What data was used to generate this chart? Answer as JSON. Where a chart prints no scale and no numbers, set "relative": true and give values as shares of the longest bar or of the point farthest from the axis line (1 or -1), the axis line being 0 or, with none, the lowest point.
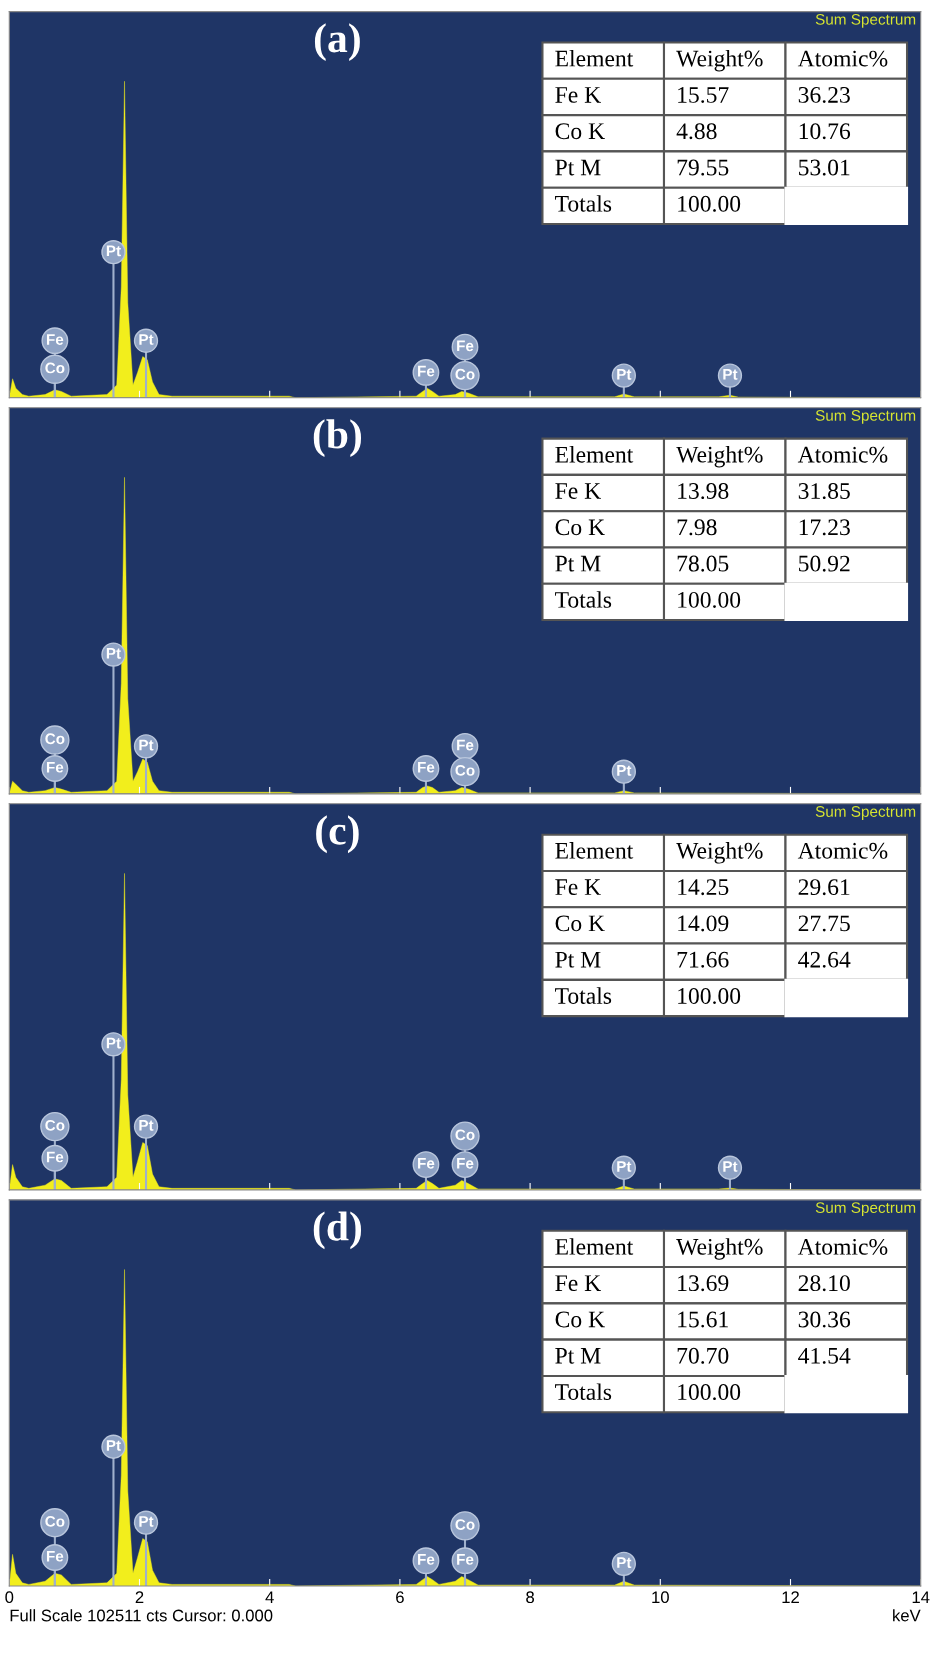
{
  "chart_data": [
    {
      "type": "area",
      "title": "(a)",
      "relative": true,
      "xlim": [
        0,
        14
      ],
      "xticks": [
        0,
        2,
        4,
        6,
        8,
        10,
        12,
        14
      ],
      "tick_labels": false,
      "series": [
        {
          "color": "#f2ee1c",
          "x": [
            0,
            0.05,
            0.1,
            0.2,
            0.3,
            0.55,
            0.7,
            0.8,
            0.95,
            1.5,
            1.65,
            1.72,
            1.77,
            1.82,
            1.9,
            1.97,
            2.05,
            2.12,
            2.2,
            2.3,
            2.5,
            4.3,
            4.4,
            6.25,
            6.35,
            6.42,
            6.5,
            6.6,
            6.85,
            6.95,
            7.05,
            7.2,
            9.3,
            9.44,
            9.6,
            10.9,
            11.07,
            11.2,
            14
          ],
          "values": [
            0,
            0.06,
            0.03,
            0.01,
            0.005,
            0.01,
            0.025,
            0.02,
            0.005,
            0.01,
            0.04,
            0.35,
            1,
            0.3,
            0.04,
            0.08,
            0.13,
            0.12,
            0.05,
            0.01,
            0.005,
            0.005,
            0,
            0.005,
            0.02,
            0.03,
            0.02,
            0.005,
            0.01,
            0.02,
            0.015,
            0.003,
            0.003,
            0.012,
            0.003,
            0.003,
            0.008,
            0.002,
            0
          ]
        }
      ],
      "annotations": [
        "Sum Spectrum",
        "Element",
        "Weight%",
        "Atomic%",
        "Fe K",
        "15.57",
        "36.23",
        "Co K",
        "4.88",
        "10.76",
        "Pt M",
        "79.55",
        "53.01",
        "Totals",
        "100.00",
        {
          "text": "Fe",
          "x": 0.7,
          "y": 0.18
        },
        {
          "text": "Co",
          "x": 0.7,
          "y": 0.09
        },
        {
          "text": "Pt",
          "x": 1.6,
          "y": 0.46
        },
        {
          "text": "Pt",
          "x": 2.1,
          "y": 0.18
        },
        {
          "text": "Fe",
          "x": 6.4,
          "y": 0.08
        },
        {
          "text": "Fe",
          "x": 7.0,
          "y": 0.16
        },
        {
          "text": "Co",
          "x": 7.0,
          "y": 0.07
        },
        {
          "text": "Pt",
          "x": 9.44,
          "y": 0.07
        },
        {
          "text": "Pt",
          "x": 11.07,
          "y": 0.07
        }
      ]
    },
    {
      "type": "area",
      "title": "(b)",
      "relative": true,
      "xlim": [
        0,
        14
      ],
      "xticks": [
        0,
        2,
        4,
        6,
        8,
        10,
        12,
        14
      ],
      "tick_labels": false,
      "series": [
        {
          "color": "#f2ee1c",
          "x": [
            0,
            0.05,
            0.1,
            0.2,
            0.3,
            0.55,
            0.7,
            0.8,
            0.95,
            1.5,
            1.65,
            1.72,
            1.77,
            1.82,
            1.9,
            1.97,
            2.05,
            2.12,
            2.2,
            2.3,
            2.5,
            4.3,
            4.4,
            6.25,
            6.35,
            6.42,
            6.5,
            6.6,
            6.85,
            6.95,
            7.05,
            7.2,
            9.3,
            9.44,
            9.6,
            14
          ],
          "values": [
            0,
            0.04,
            0.03,
            0.01,
            0.005,
            0.01,
            0.02,
            0.015,
            0.005,
            0.01,
            0.04,
            0.35,
            1,
            0.3,
            0.04,
            0.07,
            0.11,
            0.1,
            0.04,
            0.01,
            0.005,
            0.005,
            0,
            0.005,
            0.02,
            0.025,
            0.02,
            0.005,
            0.01,
            0.02,
            0.015,
            0.003,
            0.003,
            0.01,
            0.003,
            0
          ]
        }
      ],
      "annotations": [
        "Sum Spectrum",
        "Element",
        "Weight%",
        "Atomic%",
        "Fe K",
        "13.98",
        "31.85",
        "Co K",
        "7.98",
        "17.23",
        "Pt M",
        "78.05",
        "50.92",
        "Totals",
        "100.00",
        {
          "text": "Co",
          "x": 0.7,
          "y": 0.17
        },
        {
          "text": "Fe",
          "x": 0.7,
          "y": 0.08
        },
        {
          "text": "Pt",
          "x": 1.6,
          "y": 0.44
        },
        {
          "text": "Pt",
          "x": 2.1,
          "y": 0.15
        },
        {
          "text": "Fe",
          "x": 6.4,
          "y": 0.08
        },
        {
          "text": "Fe",
          "x": 7.0,
          "y": 0.15
        },
        {
          "text": "Co",
          "x": 7.0,
          "y": 0.07
        },
        {
          "text": "Pt",
          "x": 9.44,
          "y": 0.07
        }
      ]
    },
    {
      "type": "area",
      "title": "(c)",
      "relative": true,
      "xlim": [
        0,
        14
      ],
      "xticks": [
        0,
        2,
        4,
        6,
        8,
        10,
        12,
        14
      ],
      "tick_labels": false,
      "series": [
        {
          "color": "#f2ee1c",
          "x": [
            0,
            0.05,
            0.1,
            0.2,
            0.3,
            0.55,
            0.7,
            0.8,
            0.95,
            1.5,
            1.65,
            1.72,
            1.77,
            1.82,
            1.9,
            1.97,
            2.05,
            2.12,
            2.2,
            2.3,
            2.5,
            4.3,
            4.4,
            6.25,
            6.35,
            6.42,
            6.5,
            6.6,
            6.85,
            6.95,
            7.05,
            7.2,
            9.3,
            9.44,
            9.6,
            10.9,
            11.07,
            11.2,
            14
          ],
          "values": [
            0,
            0.08,
            0.04,
            0.01,
            0.005,
            0.015,
            0.035,
            0.03,
            0.005,
            0.01,
            0.04,
            0.35,
            1,
            0.3,
            0.04,
            0.09,
            0.15,
            0.14,
            0.05,
            0.01,
            0.005,
            0.005,
            0,
            0.005,
            0.02,
            0.03,
            0.02,
            0.005,
            0.015,
            0.03,
            0.02,
            0.003,
            0.003,
            0.012,
            0.003,
            0.003,
            0.006,
            0.002,
            0
          ]
        }
      ],
      "annotations": [
        "Sum Spectrum",
        "Element",
        "Weight%",
        "Atomic%",
        "Fe K",
        "14.25",
        "29.61",
        "Co K",
        "14.09",
        "27.75",
        "Pt M",
        "71.66",
        "42.64",
        "Totals",
        "100.00",
        {
          "text": "Co",
          "x": 0.7,
          "y": 0.2
        },
        {
          "text": "Fe",
          "x": 0.7,
          "y": 0.1
        },
        {
          "text": "Pt",
          "x": 1.6,
          "y": 0.46
        },
        {
          "text": "Pt",
          "x": 2.1,
          "y": 0.2
        },
        {
          "text": "Fe",
          "x": 6.4,
          "y": 0.08
        },
        {
          "text": "Co",
          "x": 7.0,
          "y": 0.17
        },
        {
          "text": "Fe",
          "x": 7.0,
          "y": 0.08
        },
        {
          "text": "Pt",
          "x": 9.44,
          "y": 0.07
        },
        {
          "text": "Pt",
          "x": 11.07,
          "y": 0.07
        }
      ]
    },
    {
      "type": "area",
      "title": "(d)",
      "relative": true,
      "xlim": [
        0,
        14
      ],
      "xticks": [
        0,
        2,
        4,
        6,
        8,
        10,
        12,
        14
      ],
      "xlabel": "keV",
      "series": [
        {
          "color": "#f2ee1c",
          "x": [
            0,
            0.05,
            0.1,
            0.2,
            0.3,
            0.55,
            0.7,
            0.8,
            0.95,
            1.5,
            1.65,
            1.72,
            1.77,
            1.82,
            1.9,
            1.97,
            2.05,
            2.12,
            2.2,
            2.3,
            2.5,
            4.3,
            4.4,
            6.25,
            6.35,
            6.42,
            6.5,
            6.6,
            6.85,
            6.95,
            7.05,
            7.2,
            9.3,
            9.44,
            9.6,
            14
          ],
          "values": [
            0,
            0.1,
            0.04,
            0.01,
            0.005,
            0.015,
            0.04,
            0.035,
            0.005,
            0.01,
            0.04,
            0.35,
            1,
            0.3,
            0.04,
            0.09,
            0.15,
            0.14,
            0.05,
            0.01,
            0.005,
            0.005,
            0,
            0.005,
            0.02,
            0.03,
            0.02,
            0.005,
            0.015,
            0.03,
            0.02,
            0.003,
            0.003,
            0.015,
            0.003,
            0
          ]
        }
      ],
      "annotations": [
        "Sum Spectrum",
        "Element",
        "Weight%",
        "Atomic%",
        "Fe K",
        "13.69",
        "28.10",
        "Co K",
        "15.61",
        "30.36",
        "Pt M",
        "70.70",
        "41.54",
        "Totals",
        "100.00",
        "Full Scale 102511 cts Cursor: 0.000",
        {
          "text": "Co",
          "x": 0.7,
          "y": 0.2
        },
        {
          "text": "Fe",
          "x": 0.7,
          "y": 0.09
        },
        {
          "text": "Pt",
          "x": 1.6,
          "y": 0.44
        },
        {
          "text": "Pt",
          "x": 2.1,
          "y": 0.2
        },
        {
          "text": "Fe",
          "x": 6.4,
          "y": 0.08
        },
        {
          "text": "Co",
          "x": 7.0,
          "y": 0.19
        },
        {
          "text": "Fe",
          "x": 7.0,
          "y": 0.08
        },
        {
          "text": "Pt",
          "x": 9.44,
          "y": 0.07
        }
      ]
    }
  ]
}
